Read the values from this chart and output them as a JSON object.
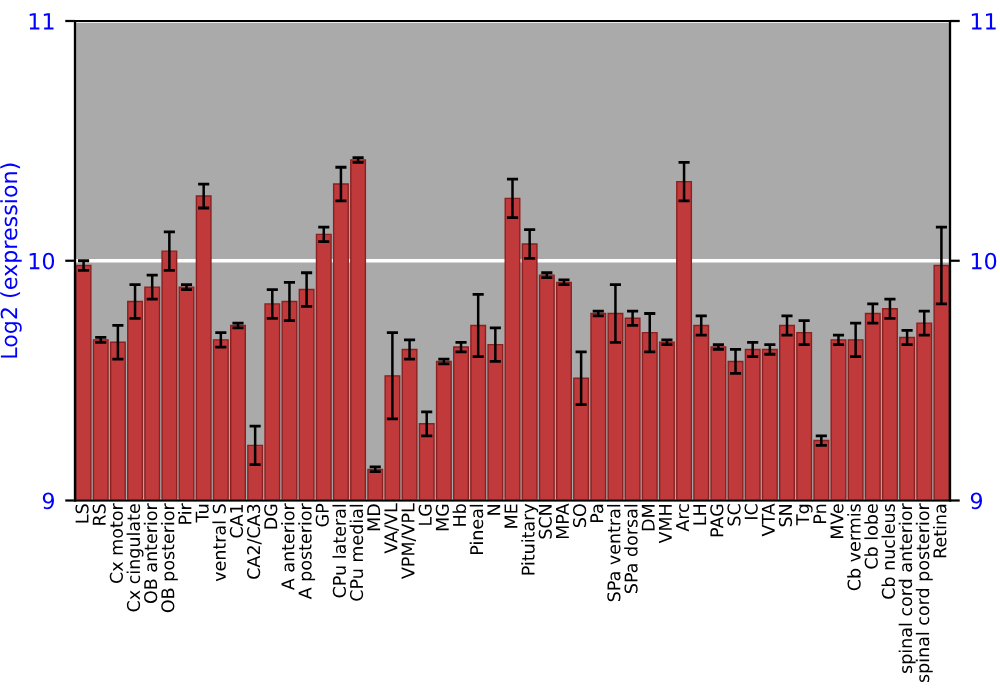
{
  "chart_data": {
    "type": "bar",
    "ylabel": "Log2 (expression)",
    "categories": [
      "LS",
      "RS",
      "Cx motor",
      "Cx cingulate",
      "OB anterior",
      "OB posterior",
      "Pir",
      "Tu",
      "ventral S",
      "CA1",
      "CA2/CA3",
      "DG",
      "A anterior",
      "A posterior",
      "GP",
      "CPu lateral",
      "CPu medial",
      "MD",
      "VA/VL",
      "VPM/VPL",
      "LG",
      "MG",
      "Hb",
      "Pineal",
      "N",
      "ME",
      "Pituitary",
      "SCN",
      "MPA",
      "SO",
      "Pa",
      "SPa ventral",
      "SPa dorsal",
      "DM",
      "VMH",
      "Arc",
      "LH",
      "PAG",
      "SC",
      "IC",
      "VTA",
      "SN",
      "Tg",
      "Pn",
      "MVe",
      "Cb vermis",
      "Cb lobe",
      "Cb nucleus",
      "spinal cord anterior",
      "spinal cord posterior",
      "Retina"
    ],
    "series": [
      {
        "color": "#c0393b",
        "values": [
          9.98,
          9.67,
          9.66,
          9.83,
          9.89,
          10.04,
          9.89,
          10.27,
          9.67,
          9.73,
          9.23,
          9.82,
          9.83,
          9.88,
          10.11,
          10.32,
          10.42,
          9.13,
          9.52,
          9.63,
          9.32,
          9.58,
          9.64,
          9.73,
          9.65,
          10.26,
          10.07,
          9.94,
          9.91,
          9.51,
          9.78,
          9.78,
          9.76,
          9.7,
          9.66,
          10.33,
          9.73,
          9.64,
          9.58,
          9.63,
          9.63,
          9.73,
          9.7,
          9.25,
          9.67,
          9.67,
          9.78,
          9.8,
          9.68,
          9.74,
          9.98
        ],
        "errors": [
          0.02,
          0.01,
          0.07,
          0.07,
          0.05,
          0.08,
          0.01,
          0.05,
          0.03,
          0.01,
          0.08,
          0.06,
          0.08,
          0.07,
          0.03,
          0.07,
          0.01,
          0.01,
          0.18,
          0.04,
          0.05,
          0.01,
          0.02,
          0.13,
          0.07,
          0.08,
          0.06,
          0.01,
          0.01,
          0.11,
          0.01,
          0.12,
          0.03,
          0.08,
          0.01,
          0.08,
          0.04,
          0.01,
          0.05,
          0.03,
          0.02,
          0.04,
          0.05,
          0.02,
          0.02,
          0.07,
          0.04,
          0.04,
          0.03,
          0.05,
          0.16
        ]
      }
    ],
    "ylim": [
      9,
      11
    ],
    "yticks": [
      9,
      10,
      11
    ],
    "y2lim": [
      9,
      11
    ],
    "y2ticks": [
      9,
      10,
      11
    ],
    "grid": "y"
  }
}
